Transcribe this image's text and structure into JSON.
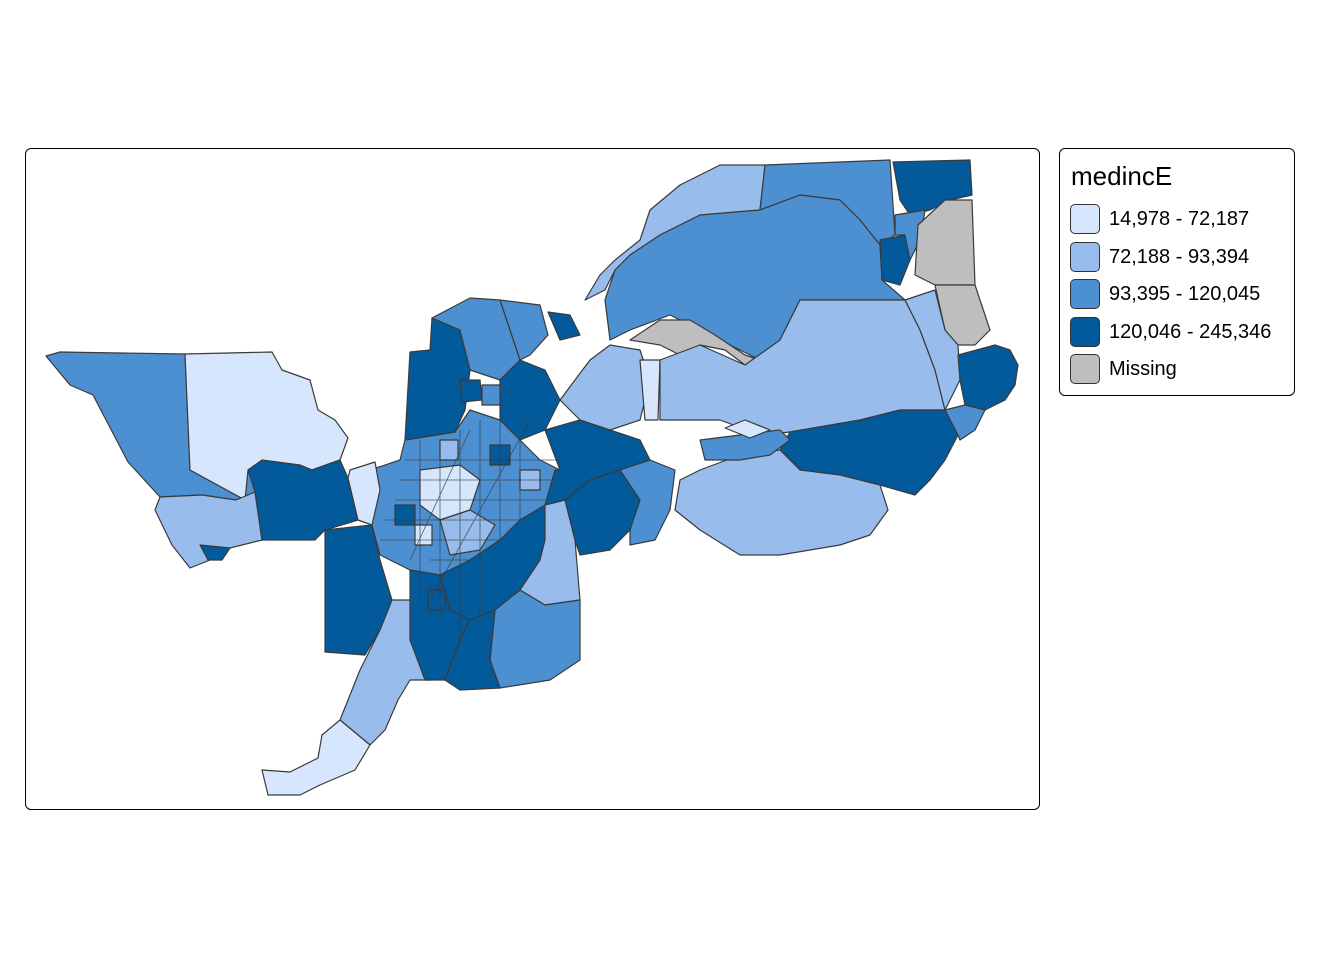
{
  "legend": {
    "title": "medincE",
    "items": [
      {
        "label": "14,978 - 72,187",
        "color": "#D6E6FC"
      },
      {
        "label": "72,188 - 93,394",
        "color": "#98BDEC"
      },
      {
        "label": "93,395 - 120,045",
        "color": "#4D90D2"
      },
      {
        "label": "120,046 - 245,346",
        "color": "#035A9A"
      },
      {
        "label": "Missing",
        "color": "#BEBEBE"
      }
    ]
  },
  "colors": {
    "outline": "#3A3A3A",
    "frame": "#000000"
  }
}
